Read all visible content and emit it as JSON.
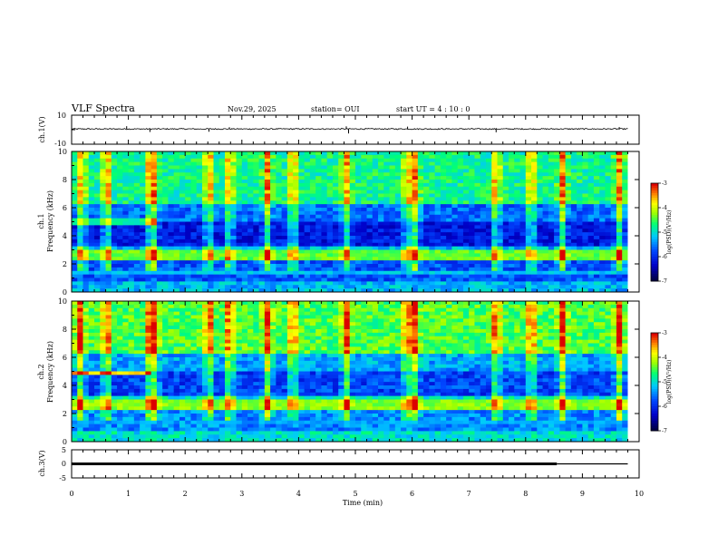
{
  "header": {
    "title": "VLF Spectra",
    "date": "Nov.29, 2025",
    "station": "station= OUI",
    "start": "start  UT =  4 : 10 : 0"
  },
  "colors": {
    "spectrogram_scale": [
      "#000060",
      "#0000c8",
      "#0050ff",
      "#00c8ff",
      "#00ff80",
      "#a0ff00",
      "#ffff00",
      "#ff8000",
      "#e00000",
      "#ffffff"
    ]
  },
  "chart_data": [
    {
      "id": "ch1-waveform",
      "type": "line",
      "ylabel": "ch.1(V)",
      "ylim": [
        -10,
        10
      ],
      "ytick_labels": [
        "10",
        "-10"
      ],
      "baseline": 0.5,
      "noise_amplitude": 0.4,
      "spikes": [
        {
          "t": 0.97,
          "v": 2.4
        },
        {
          "t": 1.38,
          "v": -1.6
        },
        {
          "t": 2.42,
          "v": -1.4
        },
        {
          "t": 2.78,
          "v": 1.7
        },
        {
          "t": 4.84,
          "v": 2.3
        },
        {
          "t": 4.88,
          "v": -2.6
        },
        {
          "t": 5.92,
          "v": 2.1
        },
        {
          "t": 7.48,
          "v": -1.8
        },
        {
          "t": 9.65,
          "v": 1.8
        }
      ]
    },
    {
      "id": "ch1-spectrogram",
      "type": "heatmap",
      "ylabel": "ch.1\nFrequency (kHz)",
      "xlim": [
        0,
        9.8
      ],
      "ylim": [
        0,
        10
      ],
      "ytick_labels": [
        "0",
        "2",
        "4",
        "6",
        "8",
        "10"
      ],
      "colorbar": {
        "label": "log(PSD)(V²/Hz)",
        "range": [
          -7,
          -3
        ],
        "tick_labels": [
          "-3",
          "-4",
          "-5",
          "-6",
          "-7"
        ]
      },
      "bands": [
        {
          "f": 2.6,
          "width": 0.35,
          "level": 0.65
        },
        {
          "f": 5.0,
          "width": 0.25,
          "level": 0.55,
          "t_end": 1.5
        },
        {
          "f": 1.4,
          "width": 0.15,
          "level": 0.45
        },
        {
          "f": 0.5,
          "width": 0.3,
          "level": 0.1
        }
      ],
      "bursts": [
        0.18,
        0.62,
        1.38,
        1.45,
        2.42,
        2.78,
        3.45,
        3.9,
        4.84,
        5.92,
        6.05,
        7.48,
        8.1,
        8.65,
        9.65
      ],
      "background_level": 0.48
    },
    {
      "id": "ch2-spectrogram",
      "type": "heatmap",
      "ylabel": "ch.2\nFrequency (kHz)",
      "xlim": [
        0,
        9.8
      ],
      "ylim": [
        0,
        10
      ],
      "ytick_labels": [
        "0",
        "2",
        "4",
        "6",
        "8",
        "10"
      ],
      "colorbar": {
        "label": "log(PSD)(V²/Hz)",
        "range": [
          -7,
          -3
        ],
        "tick_labels": [
          "-3",
          "-4",
          "-5",
          "-6",
          "-7"
        ]
      },
      "bands": [
        {
          "f": 2.7,
          "width": 0.35,
          "level": 0.68
        },
        {
          "f": 4.9,
          "width": 0.2,
          "level": 0.85,
          "t_end": 1.45
        },
        {
          "f": 1.4,
          "width": 0.15,
          "level": 0.4
        }
      ],
      "bursts": [
        0.15,
        0.62,
        1.38,
        1.45,
        2.42,
        2.78,
        3.45,
        3.9,
        4.84,
        5.92,
        6.05,
        7.48,
        8.1,
        8.65,
        9.65
      ],
      "background_level": 0.55
    },
    {
      "id": "ch3-waveform",
      "type": "line",
      "ylabel": "ch.3(V)",
      "ylim": [
        -5,
        5
      ],
      "ytick_labels": [
        "5",
        "0",
        "-5"
      ],
      "segments": [
        {
          "t0": 0,
          "t1": 8.55,
          "v": 0,
          "thick": true
        },
        {
          "t0": 8.55,
          "t1": 9.8,
          "v": 0,
          "thick": false
        }
      ]
    }
  ],
  "x_axis": {
    "label": "Time (min)",
    "range": [
      0,
      10
    ],
    "tick_labels": [
      "0",
      "1",
      "2",
      "3",
      "4",
      "5",
      "6",
      "7",
      "8",
      "9",
      "10"
    ]
  }
}
